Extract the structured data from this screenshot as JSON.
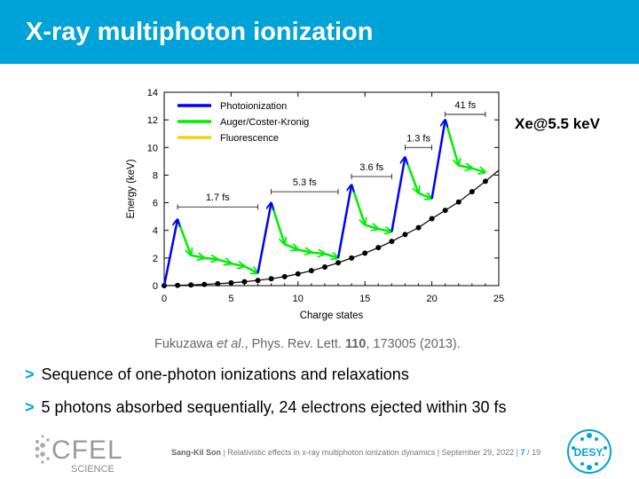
{
  "slide": {
    "title": "X-ray multiphoton ionization",
    "target_label": "Xe@5.5 keV",
    "reference": {
      "authors": "Fukuzawa ",
      "etal": "et al",
      "journal": "., Phys. Rev. Lett. ",
      "volume": "110",
      "rest": ", 173005 (2013)."
    },
    "bullets": [
      {
        "marker": ">",
        "text": "Sequence of one-photon ionizations and relaxations"
      },
      {
        "marker": ">",
        "text": "5 photons absorbed sequentially, 24 electrons ejected within 30 fs"
      }
    ],
    "footer": {
      "author": "Sang-Kil Son",
      "talk": "| Relativistic effects in x-ray multiphoton ionization dynamics | September 29, 2022 |",
      "page": "7",
      "total": "/ 19"
    },
    "logos": {
      "cfel_line1": "CFEL",
      "cfel_line2": "SCIENCE",
      "desy": "DESY."
    },
    "colors": {
      "accent": "#00a3d8",
      "photo": "#0000ff",
      "auger": "#00ee00",
      "fluor": "#f2d20c"
    }
  },
  "chart_data": {
    "type": "line",
    "xlabel": "Charge states",
    "ylabel": "Energy (keV)",
    "xlim": [
      0,
      25
    ],
    "ylim": [
      0,
      14
    ],
    "xticks": [
      0,
      5,
      10,
      15,
      20,
      25
    ],
    "yticks": [
      0,
      2,
      4,
      6,
      8,
      10,
      12,
      14
    ],
    "legend_position": "top-left",
    "legend": [
      "Photoionization",
      "Auger/Coster-Kronig",
      "Fluorescence"
    ],
    "ground_energy": {
      "x": [
        0,
        1,
        2,
        3,
        4,
        5,
        6,
        7,
        8,
        9,
        10,
        11,
        12,
        13,
        14,
        15,
        16,
        17,
        18,
        19,
        20,
        21,
        22,
        23,
        24,
        25
      ],
      "y": [
        0,
        0.02,
        0.05,
        0.09,
        0.14,
        0.2,
        0.28,
        0.38,
        0.5,
        0.65,
        0.85,
        1.08,
        1.35,
        1.65,
        2.0,
        2.35,
        2.75,
        3.2,
        3.7,
        4.2,
        4.85,
        5.45,
        6.05,
        6.8,
        7.55,
        8.35
      ]
    },
    "photoionization": [
      {
        "from": [
          0,
          0
        ],
        "to": [
          1,
          4.8
        ]
      },
      {
        "from": [
          7,
          0.9
        ],
        "to": [
          8,
          6.0
        ]
      },
      {
        "from": [
          13,
          2.0
        ],
        "to": [
          14,
          7.3
        ]
      },
      {
        "from": [
          17,
          3.9
        ],
        "to": [
          18,
          9.3
        ]
      },
      {
        "from": [
          20,
          6.3
        ],
        "to": [
          21,
          12.0
        ]
      }
    ],
    "auger_cascades": [
      [
        [
          1,
          4.8
        ],
        [
          2,
          2.2
        ],
        [
          3,
          2.0
        ],
        [
          4,
          1.9
        ],
        [
          5,
          1.6
        ],
        [
          6,
          1.4
        ],
        [
          7,
          0.9
        ]
      ],
      [
        [
          8,
          6.0
        ],
        [
          9,
          3.0
        ],
        [
          10,
          2.6
        ],
        [
          11,
          2.4
        ],
        [
          12,
          2.3
        ],
        [
          13,
          2.0
        ]
      ],
      [
        [
          14,
          7.3
        ],
        [
          15,
          4.4
        ],
        [
          16,
          4.1
        ],
        [
          17,
          3.9
        ]
      ],
      [
        [
          18,
          9.3
        ],
        [
          19,
          6.7
        ],
        [
          20,
          6.3
        ]
      ],
      [
        [
          21,
          12.0
        ],
        [
          22,
          8.7
        ],
        [
          23,
          8.5
        ],
        [
          24,
          8.2
        ]
      ]
    ],
    "timing_annotations": [
      {
        "label": "1.7 fs",
        "x_start": 1,
        "x_end": 7,
        "y": 5.7
      },
      {
        "label": "5.3 fs",
        "x_start": 8,
        "x_end": 13,
        "y": 6.8
      },
      {
        "label": "3.6 fs",
        "x_start": 14,
        "x_end": 17,
        "y": 7.9
      },
      {
        "label": "1.3 fs",
        "x_start": 18,
        "x_end": 20,
        "y": 10.0
      },
      {
        "label": "41 fs",
        "x_start": 21,
        "x_end": 24,
        "y": 12.4
      }
    ]
  }
}
